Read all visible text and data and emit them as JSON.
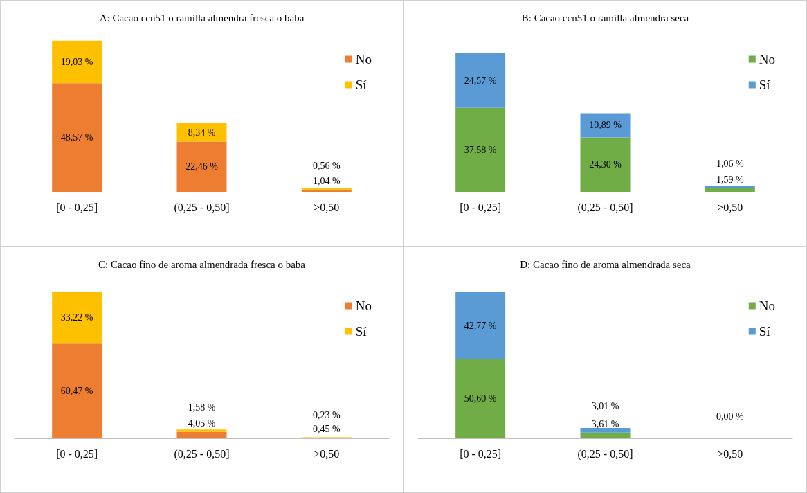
{
  "chart_data": [
    {
      "type": "bar",
      "title": "A: Cacao ccn51 o ramilla almendra fresca o baba",
      "categories": [
        "[0 - 0,25]",
        "(0,25 - 0,50]",
        ">0,50"
      ],
      "stacked": true,
      "legend": "top right",
      "tick_labels": "x",
      "series": [
        {
          "name": "No",
          "color": "#ed7d31",
          "values": [
            48.57,
            22.46,
            1.04
          ],
          "value_labels": [
            "48,57 %",
            "22,46 %",
            "1,04 %"
          ]
        },
        {
          "name": "Sí",
          "color": "#ffc000",
          "values": [
            19.03,
            8.34,
            0.56
          ],
          "value_labels": [
            "19,03 %",
            "8,34 %",
            "0,56 %"
          ]
        }
      ]
    },
    {
      "type": "bar",
      "title": "B: Cacao ccn51 o ramilla almendra seca",
      "categories": [
        "[0 - 0,25]",
        "(0,25 - 0,50]",
        ">0,50"
      ],
      "stacked": true,
      "legend": "top right",
      "tick_labels": "x",
      "series": [
        {
          "name": "No",
          "color": "#70ad47",
          "values": [
            37.58,
            24.3,
            1.59
          ],
          "value_labels": [
            "37,58 %",
            "24,30 %",
            "1,59 %"
          ]
        },
        {
          "name": "Sí",
          "color": "#5b9bd5",
          "values": [
            24.57,
            10.89,
            1.06
          ],
          "value_labels": [
            "24,57 %",
            "10,89 %",
            "1,06 %"
          ]
        }
      ]
    },
    {
      "type": "bar",
      "title": "C: Cacao fino de aroma almendrada fresca o baba",
      "categories": [
        "[0 - 0,25]",
        "(0,25 - 0,50]",
        ">0,50"
      ],
      "stacked": true,
      "legend": "top right",
      "tick_labels": "x",
      "series": [
        {
          "name": "No",
          "color": "#ed7d31",
          "values": [
            60.47,
            4.05,
            0.45
          ],
          "value_labels": [
            "60,47 %",
            "4,05 %",
            "0,45 %"
          ]
        },
        {
          "name": "Sí",
          "color": "#ffc000",
          "values": [
            33.22,
            1.58,
            0.23
          ],
          "value_labels": [
            "33,22 %",
            "1,58 %",
            "0,23 %"
          ]
        }
      ]
    },
    {
      "type": "bar",
      "title": "D: Cacao fino de aroma almendrada seca",
      "categories": [
        "[0 - 0,25]",
        "(0,25 - 0,50]",
        ">0,50"
      ],
      "stacked": true,
      "legend": "top right",
      "tick_labels": "x",
      "series": [
        {
          "name": "No",
          "color": "#70ad47",
          "values": [
            50.6,
            3.61,
            0.0
          ],
          "value_labels": [
            "50,60 %",
            "3,61 %",
            null
          ]
        },
        {
          "name": "Sí",
          "color": "#5b9bd5",
          "values": [
            42.77,
            3.01,
            0.0
          ],
          "value_labels": [
            "42,77 %",
            "3,01 %",
            "0,00 %"
          ]
        }
      ]
    }
  ]
}
